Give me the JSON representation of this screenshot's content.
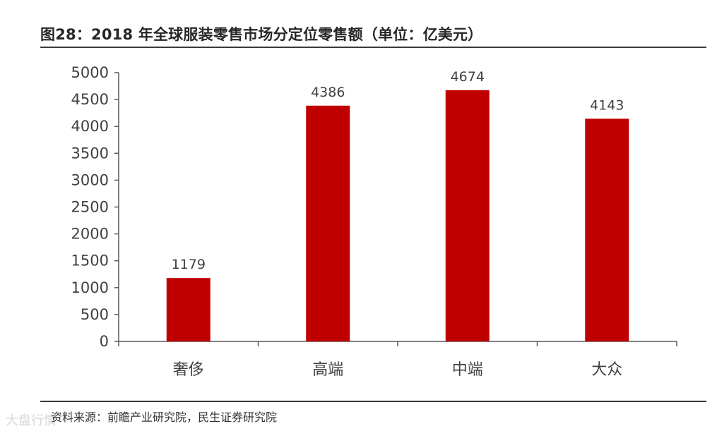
{
  "header": {
    "title": "图28：2018 年全球服装零售市场分定位零售额（单位：亿美元）"
  },
  "footer": {
    "source": "资料来源：前瞻产业研究院，民生证券研究院",
    "watermark": "大盘行情"
  },
  "colors": {
    "bar": "#C00000",
    "axis": "#595959",
    "text": "#404040"
  },
  "chart_data": {
    "type": "bar",
    "title": "图28：2018 年全球服装零售市场分定位零售额（单位：亿美元）",
    "xlabel": "",
    "ylabel": "",
    "categories": [
      "奢侈",
      "高端",
      "中端",
      "大众"
    ],
    "values": [
      1179,
      4386,
      4674,
      4143
    ],
    "value_labels": [
      "1179",
      "4386",
      "4674",
      "4143"
    ],
    "ylim": [
      0,
      5000
    ],
    "yticks": [
      0,
      500,
      1000,
      1500,
      2000,
      2500,
      3000,
      3500,
      4000,
      4500,
      5000
    ],
    "ytick_labels": [
      "0",
      "500",
      "1000",
      "1500",
      "2000",
      "2500",
      "3000",
      "3500",
      "4000",
      "4500",
      "5000"
    ],
    "grid": false,
    "legend": "none"
  }
}
